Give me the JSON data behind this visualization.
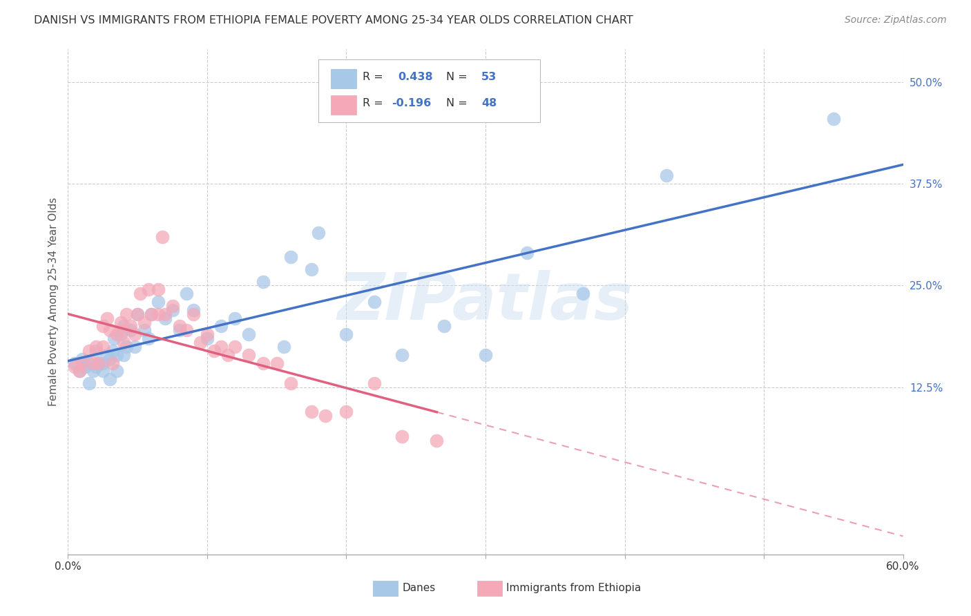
{
  "title": "DANISH VS IMMIGRANTS FROM ETHIOPIA FEMALE POVERTY AMONG 25-34 YEAR OLDS CORRELATION CHART",
  "source": "Source: ZipAtlas.com",
  "ylabel": "Female Poverty Among 25-34 Year Olds",
  "xlim": [
    0.0,
    0.6
  ],
  "ylim": [
    -0.08,
    0.54
  ],
  "xticklabels_show": [
    "0.0%",
    "60.0%"
  ],
  "ytick_labels_right": [
    "12.5%",
    "25.0%",
    "37.5%",
    "50.0%"
  ],
  "ytick_vals_right": [
    0.125,
    0.25,
    0.375,
    0.5
  ],
  "blue_color": "#a8c8e8",
  "pink_color": "#f4a8b8",
  "line_blue": "#4472c4",
  "line_pink": "#e06080",
  "watermark": "ZIPatlas",
  "danes_x": [
    0.005,
    0.008,
    0.01,
    0.012,
    0.015,
    0.015,
    0.018,
    0.02,
    0.02,
    0.022,
    0.025,
    0.025,
    0.028,
    0.03,
    0.03,
    0.032,
    0.033,
    0.035,
    0.035,
    0.038,
    0.04,
    0.04,
    0.042,
    0.045,
    0.048,
    0.05,
    0.055,
    0.058,
    0.06,
    0.065,
    0.07,
    0.075,
    0.08,
    0.085,
    0.09,
    0.1,
    0.11,
    0.12,
    0.13,
    0.14,
    0.155,
    0.16,
    0.175,
    0.18,
    0.2,
    0.22,
    0.24,
    0.27,
    0.3,
    0.33,
    0.37,
    0.43,
    0.55
  ],
  "danes_y": [
    0.155,
    0.145,
    0.16,
    0.15,
    0.155,
    0.13,
    0.145,
    0.15,
    0.17,
    0.155,
    0.155,
    0.145,
    0.165,
    0.16,
    0.135,
    0.17,
    0.185,
    0.165,
    0.145,
    0.19,
    0.165,
    0.2,
    0.175,
    0.195,
    0.175,
    0.215,
    0.195,
    0.185,
    0.215,
    0.23,
    0.21,
    0.22,
    0.195,
    0.24,
    0.22,
    0.185,
    0.2,
    0.21,
    0.19,
    0.255,
    0.175,
    0.285,
    0.27,
    0.315,
    0.19,
    0.23,
    0.165,
    0.2,
    0.165,
    0.29,
    0.24,
    0.385,
    0.455
  ],
  "eth_x": [
    0.005,
    0.008,
    0.01,
    0.015,
    0.018,
    0.02,
    0.022,
    0.025,
    0.025,
    0.028,
    0.03,
    0.032,
    0.035,
    0.038,
    0.04,
    0.04,
    0.042,
    0.045,
    0.048,
    0.05,
    0.052,
    0.055,
    0.058,
    0.06,
    0.065,
    0.065,
    0.068,
    0.07,
    0.075,
    0.08,
    0.085,
    0.09,
    0.095,
    0.1,
    0.105,
    0.11,
    0.115,
    0.12,
    0.13,
    0.14,
    0.15,
    0.16,
    0.175,
    0.185,
    0.2,
    0.22,
    0.24,
    0.265
  ],
  "eth_y": [
    0.15,
    0.145,
    0.155,
    0.17,
    0.155,
    0.175,
    0.155,
    0.175,
    0.2,
    0.21,
    0.195,
    0.155,
    0.19,
    0.205,
    0.195,
    0.18,
    0.215,
    0.2,
    0.19,
    0.215,
    0.24,
    0.205,
    0.245,
    0.215,
    0.245,
    0.215,
    0.31,
    0.215,
    0.225,
    0.2,
    0.195,
    0.215,
    0.18,
    0.19,
    0.17,
    0.175,
    0.165,
    0.175,
    0.165,
    0.155,
    0.155,
    0.13,
    0.095,
    0.09,
    0.095,
    0.13,
    0.065,
    0.06
  ],
  "background_color": "#ffffff",
  "grid_color": "#cccccc"
}
